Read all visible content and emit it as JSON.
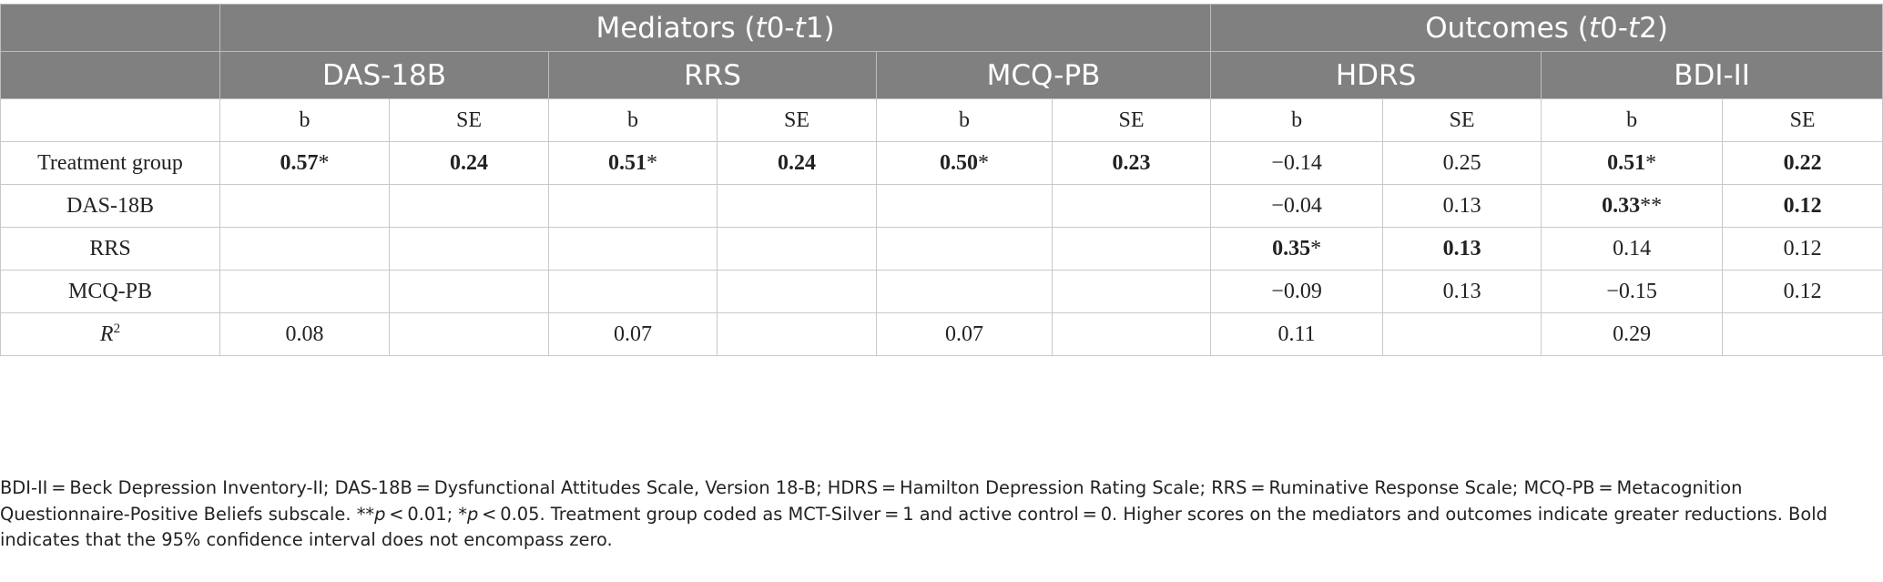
{
  "header": {
    "mediators_prefix": "Mediators (",
    "mediators_t0": "t",
    "mediators_mid": "0-",
    "mediators_t1": "t",
    "mediators_suffix": "1)",
    "outcomes_prefix": "Outcomes (",
    "outcomes_t0": "t",
    "outcomes_mid": "0-",
    "outcomes_t2": "t",
    "outcomes_suffix": "2)",
    "scales": [
      "DAS-18B",
      "RRS",
      "MCQ-PB",
      "HDRS",
      "BDI-II"
    ],
    "b_label": "b",
    "se_label": "SE"
  },
  "rows": [
    {
      "label": "Treatment group",
      "cells": [
        {
          "v": "0.57",
          "s": "*",
          "bold": true
        },
        {
          "v": "0.24",
          "s": "",
          "bold": true
        },
        {
          "v": "0.51",
          "s": "*",
          "bold": true
        },
        {
          "v": "0.24",
          "s": "",
          "bold": true
        },
        {
          "v": "0.50",
          "s": "*",
          "bold": true
        },
        {
          "v": "0.23",
          "s": "",
          "bold": true
        },
        {
          "v": "−0.14",
          "s": "",
          "bold": false
        },
        {
          "v": "0.25",
          "s": "",
          "bold": false
        },
        {
          "v": "0.51",
          "s": "*",
          "bold": true
        },
        {
          "v": "0.22",
          "s": "",
          "bold": true
        }
      ]
    },
    {
      "label": "DAS-18B",
      "cells": [
        {
          "v": "",
          "s": "",
          "bold": false
        },
        {
          "v": "",
          "s": "",
          "bold": false
        },
        {
          "v": "",
          "s": "",
          "bold": false
        },
        {
          "v": "",
          "s": "",
          "bold": false
        },
        {
          "v": "",
          "s": "",
          "bold": false
        },
        {
          "v": "",
          "s": "",
          "bold": false
        },
        {
          "v": "−0.04",
          "s": "",
          "bold": false
        },
        {
          "v": "0.13",
          "s": "",
          "bold": false
        },
        {
          "v": "0.33",
          "s": "**",
          "bold": true
        },
        {
          "v": "0.12",
          "s": "",
          "bold": true
        }
      ]
    },
    {
      "label": "RRS",
      "cells": [
        {
          "v": "",
          "s": "",
          "bold": false
        },
        {
          "v": "",
          "s": "",
          "bold": false
        },
        {
          "v": "",
          "s": "",
          "bold": false
        },
        {
          "v": "",
          "s": "",
          "bold": false
        },
        {
          "v": "",
          "s": "",
          "bold": false
        },
        {
          "v": "",
          "s": "",
          "bold": false
        },
        {
          "v": "0.35",
          "s": "*",
          "bold": true
        },
        {
          "v": "0.13",
          "s": "",
          "bold": true
        },
        {
          "v": "0.14",
          "s": "",
          "bold": false
        },
        {
          "v": "0.12",
          "s": "",
          "bold": false
        }
      ]
    },
    {
      "label": "MCQ-PB",
      "cells": [
        {
          "v": "",
          "s": "",
          "bold": false
        },
        {
          "v": "",
          "s": "",
          "bold": false
        },
        {
          "v": "",
          "s": "",
          "bold": false
        },
        {
          "v": "",
          "s": "",
          "bold": false
        },
        {
          "v": "",
          "s": "",
          "bold": false
        },
        {
          "v": "",
          "s": "",
          "bold": false
        },
        {
          "v": "−0.09",
          "s": "",
          "bold": false
        },
        {
          "v": "0.13",
          "s": "",
          "bold": false
        },
        {
          "v": "−0.15",
          "s": "",
          "bold": false
        },
        {
          "v": "0.12",
          "s": "",
          "bold": false
        }
      ]
    },
    {
      "label": "R",
      "label_sup": "2",
      "cells": [
        {
          "v": "0.08",
          "s": "",
          "bold": false
        },
        {
          "v": "",
          "s": "",
          "bold": false
        },
        {
          "v": "0.07",
          "s": "",
          "bold": false
        },
        {
          "v": "",
          "s": "",
          "bold": false
        },
        {
          "v": "0.07",
          "s": "",
          "bold": false
        },
        {
          "v": "",
          "s": "",
          "bold": false
        },
        {
          "v": "0.11",
          "s": "",
          "bold": false
        },
        {
          "v": "",
          "s": "",
          "bold": false
        },
        {
          "v": "0.29",
          "s": "",
          "bold": false
        },
        {
          "v": "",
          "s": "",
          "bold": false
        }
      ]
    }
  ],
  "footnote": {
    "part1": "BDI-II = Beck Depression Inventory-II; DAS-18B = Dysfunctional Attitudes Scale, Version 18-B; HDRS = Hamilton Depression Rating Scale; RRS = Ruminative Response Scale; MCQ-PB = Metacognition Questionnaire-Positive Beliefs subscale. **",
    "p1": "p",
    "part2": " < 0.01; *",
    "p2": "p",
    "part3": " < 0.05. Treatment group coded as MCT-Silver = 1 and active control = 0. Higher scores on the mediators and outcomes indicate greater reductions. Bold indicates that the 95% confidence interval does not encompass zero."
  }
}
